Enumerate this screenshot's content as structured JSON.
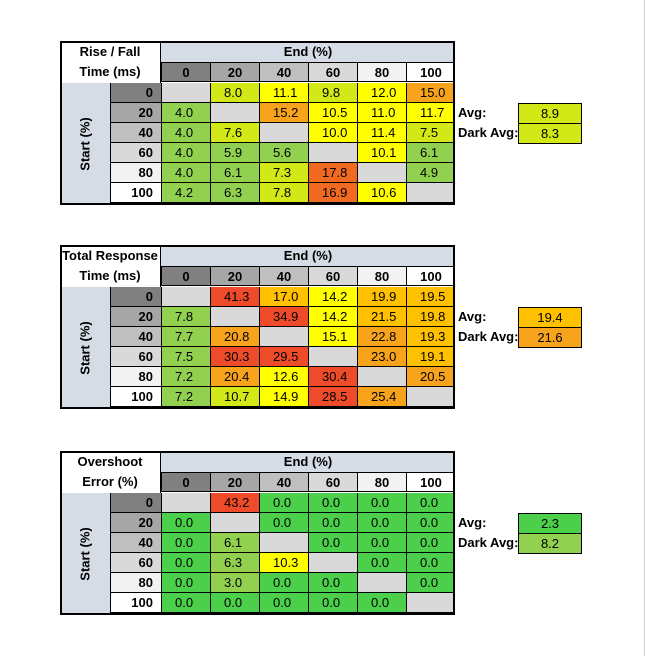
{
  "column_header": "End (%)",
  "row_header": "Start (%)",
  "levels": [
    "0",
    "20",
    "40",
    "60",
    "80",
    "100"
  ],
  "avg_label": "Avg:",
  "dark_avg_label": "Dark Avg:",
  "colors": {
    "header_fill": "#d6dce5",
    "diagonal_empty": "#d9d9d9",
    "green": "#92d050",
    "green_dark": "#4cd04c",
    "yellow_green": "#d2e817",
    "yellow": "#ffff00",
    "orange_light": "#ffc000",
    "orange": "#f7a31c",
    "orange_dark": "#f06a21",
    "red": "#ee4b2b"
  },
  "tables": [
    {
      "id": "rise-fall",
      "title_line1": "Rise / Fall",
      "title_line2": "Time (ms)",
      "avg": "8.9",
      "dark_avg": "8.3",
      "avg_color": "#d2e817",
      "dark_avg_color": "#d2e817",
      "rows": [
        [
          "",
          "8.0",
          "11.1",
          "9.8",
          "12.0",
          "15.0"
        ],
        [
          "4.0",
          "",
          "15.2",
          "10.5",
          "11.0",
          "11.7"
        ],
        [
          "4.0",
          "7.6",
          "",
          "10.0",
          "11.4",
          "7.5"
        ],
        [
          "4.0",
          "5.9",
          "5.6",
          "",
          "10.1",
          "6.1"
        ],
        [
          "4.0",
          "6.1",
          "7.3",
          "17.8",
          "",
          "4.9"
        ],
        [
          "4.2",
          "6.3",
          "7.8",
          "16.9",
          "10.6",
          ""
        ]
      ],
      "cell_colors": [
        [
          "#d9d9d9",
          "#d2e817",
          "#ffff00",
          "#d2e817",
          "#ffff00",
          "#f7a31c"
        ],
        [
          "#92d050",
          "#d9d9d9",
          "#f7a31c",
          "#ffff00",
          "#ffff00",
          "#ffff00"
        ],
        [
          "#92d050",
          "#d2e817",
          "#d9d9d9",
          "#ffff00",
          "#ffff00",
          "#d2e817"
        ],
        [
          "#92d050",
          "#92d050",
          "#92d050",
          "#d9d9d9",
          "#ffff00",
          "#92d050"
        ],
        [
          "#92d050",
          "#92d050",
          "#d2e817",
          "#f06a21",
          "#d9d9d9",
          "#92d050"
        ],
        [
          "#92d050",
          "#92d050",
          "#d2e817",
          "#f06a21",
          "#ffff00",
          "#d9d9d9"
        ]
      ]
    },
    {
      "id": "total-response",
      "title_line1": "Total Response",
      "title_line2": "Time (ms)",
      "avg": "19.4",
      "dark_avg": "21.6",
      "avg_color": "#ffc000",
      "dark_avg_color": "#f7a31c",
      "rows": [
        [
          "",
          "41.3",
          "17.0",
          "14.2",
          "19.9",
          "19.5"
        ],
        [
          "7.8",
          "",
          "34.9",
          "14.2",
          "21.5",
          "19.8"
        ],
        [
          "7.7",
          "20.8",
          "",
          "15.1",
          "22.8",
          "19.3"
        ],
        [
          "7.5",
          "30.3",
          "29.5",
          "",
          "23.0",
          "19.1"
        ],
        [
          "7.2",
          "20.4",
          "12.6",
          "30.4",
          "",
          "20.5"
        ],
        [
          "7.2",
          "10.7",
          "14.9",
          "28.5",
          "25.4",
          ""
        ]
      ],
      "cell_colors": [
        [
          "#d9d9d9",
          "#ee4b2b",
          "#ffc000",
          "#ffff00",
          "#ffc000",
          "#ffc000"
        ],
        [
          "#92d050",
          "#d9d9d9",
          "#ee4b2b",
          "#ffff00",
          "#ffc000",
          "#ffc000"
        ],
        [
          "#92d050",
          "#f7a31c",
          "#d9d9d9",
          "#ffff00",
          "#f7a31c",
          "#ffc000"
        ],
        [
          "#92d050",
          "#ee4b2b",
          "#ee4b2b",
          "#d9d9d9",
          "#f7a31c",
          "#ffc000"
        ],
        [
          "#92d050",
          "#f7a31c",
          "#ffff00",
          "#ee4b2b",
          "#d9d9d9",
          "#f7a31c"
        ],
        [
          "#92d050",
          "#d2e817",
          "#ffff00",
          "#ee4b2b",
          "#f7a31c",
          "#d9d9d9"
        ]
      ]
    },
    {
      "id": "overshoot",
      "title_line1": "Overshoot",
      "title_line2": "Error (%)",
      "avg": "2.3",
      "dark_avg": "8.2",
      "avg_color": "#4cd04c",
      "dark_avg_color": "#92d050",
      "rows": [
        [
          "",
          "43.2",
          "0.0",
          "0.0",
          "0.0",
          "0.0"
        ],
        [
          "0.0",
          "",
          "0.0",
          "0.0",
          "0.0",
          "0.0"
        ],
        [
          "0.0",
          "6.1",
          "",
          "0.0",
          "0.0",
          "0.0"
        ],
        [
          "0.0",
          "6.3",
          "10.3",
          "",
          "0.0",
          "0.0"
        ],
        [
          "0.0",
          "3.0",
          "0.0",
          "0.0",
          "",
          "0.0"
        ],
        [
          "0.0",
          "0.0",
          "0.0",
          "0.0",
          "0.0",
          ""
        ]
      ],
      "cell_colors": [
        [
          "#d9d9d9",
          "#ee4b2b",
          "#4cd04c",
          "#4cd04c",
          "#4cd04c",
          "#4cd04c"
        ],
        [
          "#4cd04c",
          "#d9d9d9",
          "#4cd04c",
          "#4cd04c",
          "#4cd04c",
          "#4cd04c"
        ],
        [
          "#4cd04c",
          "#92d050",
          "#d9d9d9",
          "#4cd04c",
          "#4cd04c",
          "#4cd04c"
        ],
        [
          "#4cd04c",
          "#92d050",
          "#ffff00",
          "#d9d9d9",
          "#4cd04c",
          "#4cd04c"
        ],
        [
          "#4cd04c",
          "#92d050",
          "#4cd04c",
          "#4cd04c",
          "#d9d9d9",
          "#4cd04c"
        ],
        [
          "#4cd04c",
          "#4cd04c",
          "#4cd04c",
          "#4cd04c",
          "#4cd04c",
          "#d9d9d9"
        ]
      ]
    }
  ]
}
